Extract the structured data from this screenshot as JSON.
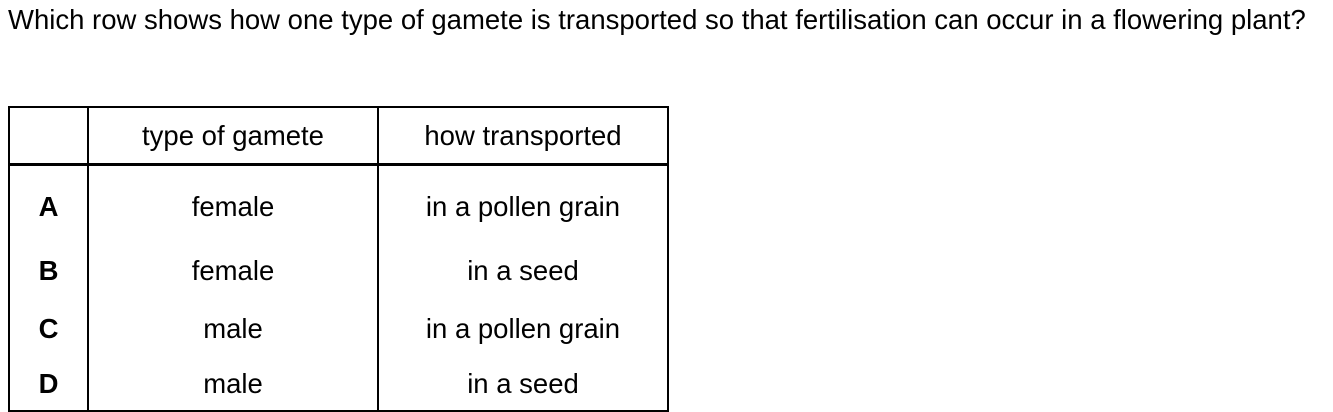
{
  "question": {
    "text": "Which row shows how one type of gamete is transported so that fertilisation can occur in a flowering plant?"
  },
  "table": {
    "headers": [
      "",
      "type of gamete",
      "how transported"
    ],
    "rows": [
      {
        "key": "A",
        "gamete": "female",
        "transport": "in a pollen grain"
      },
      {
        "key": "B",
        "gamete": "female",
        "transport": "in a seed"
      },
      {
        "key": "C",
        "gamete": "male",
        "transport": "in a pollen grain"
      },
      {
        "key": "D",
        "gamete": "male",
        "transport": "in a seed"
      }
    ]
  }
}
